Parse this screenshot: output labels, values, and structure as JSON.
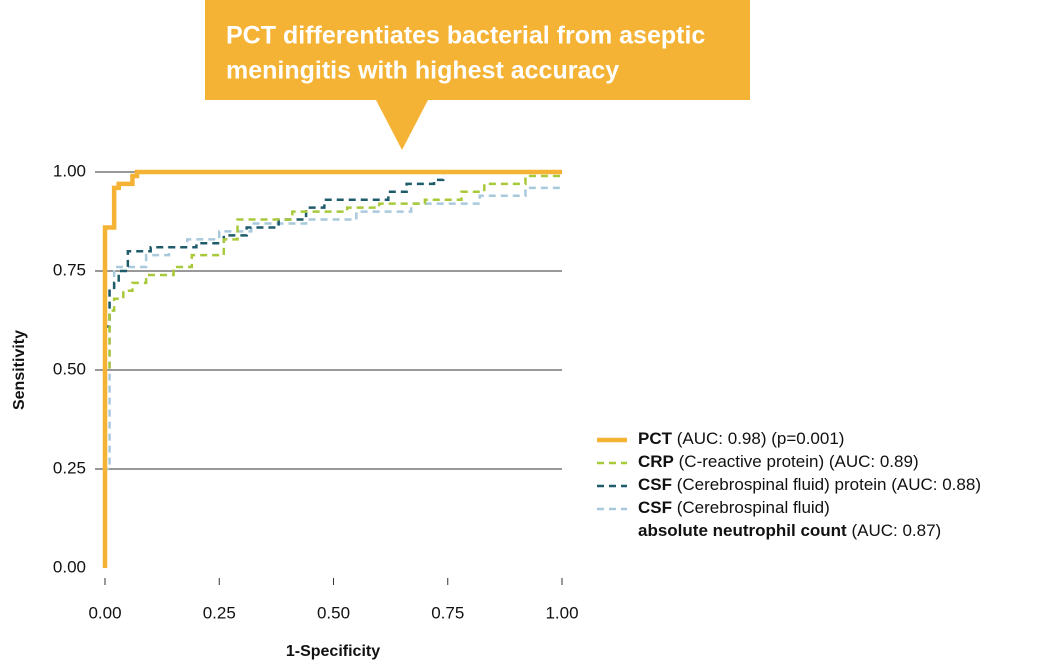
{
  "chart_data": {
    "type": "line",
    "annotation": [
      "PCT differentiates bacterial from aseptic",
      "meningitis with highest accuracy"
    ],
    "xlabel": "1-Specificity",
    "ylabel": "Sensitivity",
    "xlim": [
      0,
      1
    ],
    "ylim": [
      0,
      1
    ],
    "xticks": [
      {
        "value": 0,
        "label": "0.00"
      },
      {
        "value": 0.25,
        "label": "0.25"
      },
      {
        "value": 0.5,
        "label": "0.50"
      },
      {
        "value": 0.75,
        "label": "0.75"
      },
      {
        "value": 1,
        "label": "1.00"
      }
    ],
    "yticks": [
      {
        "value": 0,
        "label": "0.00"
      },
      {
        "value": 0.25,
        "label": "0.25"
      },
      {
        "value": 0.5,
        "label": "0.50"
      },
      {
        "value": 0.75,
        "label": "0.75"
      },
      {
        "value": 1,
        "label": "1.00"
      }
    ],
    "grid": true,
    "series": [
      {
        "name": "PCT",
        "legend_text": "(AUC: 0.98) (p=0.001)",
        "color": "#f5b335",
        "dashed": false,
        "x": [
          0,
          0,
          0.02,
          0.02,
          0.03,
          0.03,
          0.06,
          0.06,
          0.07,
          0.07,
          1
        ],
        "values": [
          0,
          0.86,
          0.86,
          0.96,
          0.96,
          0.97,
          0.97,
          0.99,
          0.99,
          1,
          1
        ]
      },
      {
        "name": "CRP",
        "legend_text": "(C-reactive protein) (AUC: 0.89)",
        "color": "#a8c93a",
        "dashed": true,
        "x": [
          0,
          0,
          0.01,
          0.01,
          0.02,
          0.02,
          0.04,
          0.04,
          0.06,
          0.06,
          0.09,
          0.09,
          0.15,
          0.15,
          0.19,
          0.19,
          0.26,
          0.26,
          0.29,
          0.29,
          0.41,
          0.41,
          0.53,
          0.53,
          0.6,
          0.6,
          0.7,
          0.7,
          0.78,
          0.78,
          0.83,
          0.83,
          0.92,
          0.92,
          1
        ],
        "values": [
          0,
          0.5,
          0.5,
          0.65,
          0.65,
          0.68,
          0.68,
          0.7,
          0.7,
          0.72,
          0.72,
          0.74,
          0.74,
          0.76,
          0.76,
          0.79,
          0.79,
          0.83,
          0.83,
          0.88,
          0.88,
          0.9,
          0.9,
          0.91,
          0.91,
          0.92,
          0.92,
          0.93,
          0.93,
          0.95,
          0.95,
          0.97,
          0.97,
          0.99,
          0.99
        ]
      },
      {
        "name": "CSF",
        "legend_text": "(Cerebrospinal fluid) protein (AUC: 0.88)",
        "color": "#1f5c6b",
        "dashed": true,
        "x": [
          0,
          0,
          0.01,
          0.01,
          0.02,
          0.02,
          0.03,
          0.03,
          0.05,
          0.05,
          0.1,
          0.1,
          0.2,
          0.2,
          0.26,
          0.26,
          0.31,
          0.31,
          0.38,
          0.38,
          0.44,
          0.44,
          0.48,
          0.48,
          0.62,
          0.62,
          0.66,
          0.66,
          0.72,
          0.72,
          0.74,
          0.74,
          1
        ],
        "values": [
          0,
          0.61,
          0.61,
          0.7,
          0.7,
          0.72,
          0.72,
          0.75,
          0.75,
          0.8,
          0.8,
          0.81,
          0.81,
          0.82,
          0.82,
          0.84,
          0.84,
          0.86,
          0.86,
          0.88,
          0.88,
          0.91,
          0.91,
          0.93,
          0.93,
          0.95,
          0.95,
          0.97,
          0.97,
          0.98,
          0.98,
          1,
          1
        ]
      },
      {
        "name": "CSF",
        "legend_text": "(Cerebrospinal fluid)",
        "legend_line2_bold": "absolute neutrophil count",
        "legend_line2_text": "(AUC: 0.87)",
        "color": "#a9c9dc",
        "dashed": true,
        "x": [
          0,
          0,
          0.01,
          0.01,
          0.02,
          0.02,
          0.09,
          0.09,
          0.14,
          0.14,
          0.18,
          0.18,
          0.25,
          0.25,
          0.32,
          0.32,
          0.44,
          0.44,
          0.55,
          0.55,
          0.67,
          0.67,
          0.82,
          0.82,
          0.92,
          0.92,
          1
        ],
        "values": [
          0,
          0.25,
          0.25,
          0.7,
          0.7,
          0.76,
          0.76,
          0.79,
          0.79,
          0.81,
          0.81,
          0.83,
          0.83,
          0.85,
          0.85,
          0.87,
          0.87,
          0.88,
          0.88,
          0.9,
          0.9,
          0.92,
          0.92,
          0.94,
          0.94,
          0.96,
          0.96
        ]
      }
    ]
  }
}
